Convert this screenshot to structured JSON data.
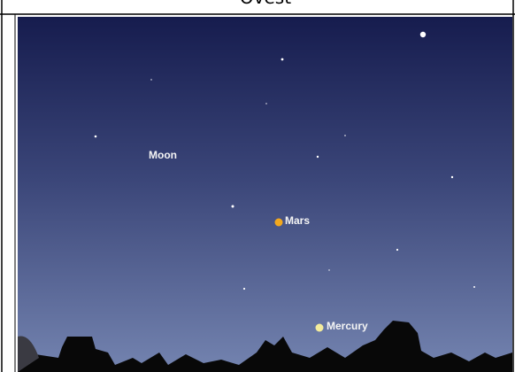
{
  "header": {
    "title": "Ovest"
  },
  "sky": {
    "labels": [
      "Moon",
      "Mars",
      "Mercury"
    ]
  }
}
